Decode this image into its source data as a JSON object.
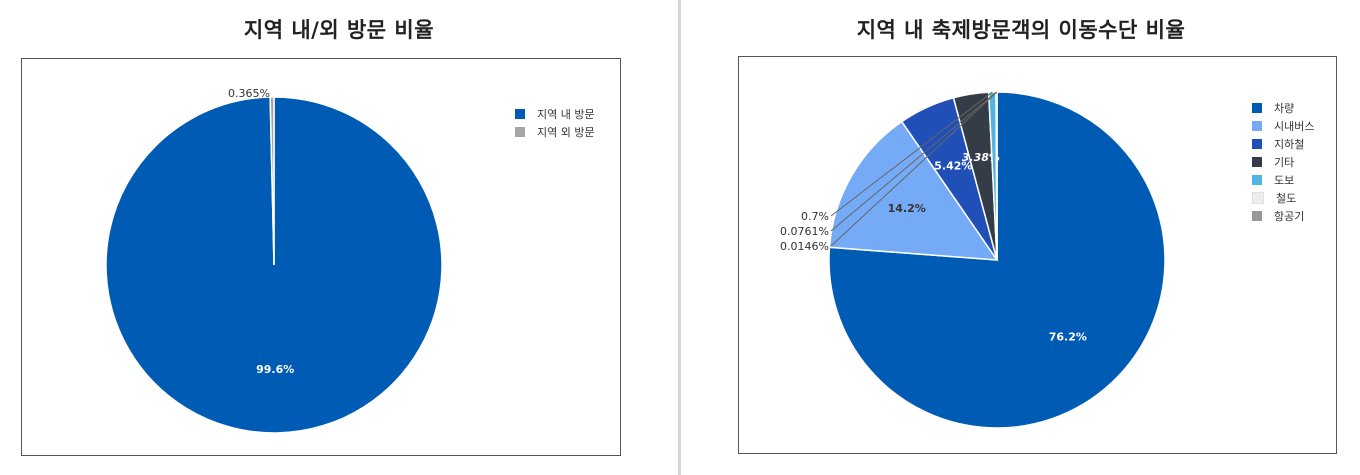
{
  "chart_data": [
    {
      "type": "pie",
      "title": "지역 내/외 방문 비율",
      "slices": [
        {
          "name": "지역 내 방문",
          "value": 99.6,
          "label": "99.6%",
          "color": "#005bb5"
        },
        {
          "name": "지역 외 방문",
          "value": 0.365,
          "label": "0.365%",
          "color": "#a6a6a6"
        }
      ],
      "legend_placement": "top-right"
    },
    {
      "type": "pie",
      "title": "지역 내 축제방문객의 이동수단 비율",
      "slices": [
        {
          "name": "차량",
          "value": 76.2,
          "label": "76.2%",
          "color": "#005bb5"
        },
        {
          "name": "시내버스",
          "value": 14.2,
          "label": "14.2%",
          "color": "#75aaf7"
        },
        {
          "name": "지하철",
          "value": 5.42,
          "label": "5.42%",
          "color": "#1f4fb7"
        },
        {
          "name": "기타",
          "value": 3.38,
          "label": "3.38%",
          "color": "#343d47"
        },
        {
          "name": "도보",
          "value": 0.7,
          "label": "0.7%",
          "color": "#4fb3e3"
        },
        {
          "name": "철도",
          "value": 0.0761,
          "label": "0.0761%",
          "color": "#ededed"
        },
        {
          "name": "항공기",
          "value": 0.0146,
          "label": "0.0146%",
          "color": "#999999"
        }
      ],
      "legend_placement": "top-right"
    }
  ]
}
